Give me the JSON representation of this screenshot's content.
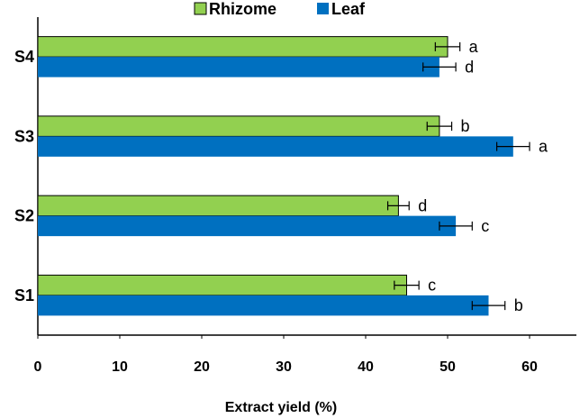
{
  "chart_data": {
    "type": "bar",
    "orientation": "horizontal",
    "title": "",
    "xlabel": "Extract yield (%)",
    "ylabel": "",
    "xlim": [
      0,
      65
    ],
    "x_ticks": [
      "0",
      "10",
      "20",
      "30",
      "40",
      "50",
      "60"
    ],
    "categories": [
      "S1",
      "S2",
      "S3",
      "S4"
    ],
    "series": [
      {
        "name": "Rhizome",
        "color": "#92d050",
        "values": [
          45,
          44,
          49,
          50
        ],
        "errors": [
          1.5,
          1.3,
          1.5,
          1.5
        ],
        "labels": [
          "c",
          "d",
          "b",
          "a"
        ]
      },
      {
        "name": "Leaf",
        "color": "#0070c0",
        "values": [
          55,
          51,
          58,
          49
        ],
        "errors": [
          2.0,
          2.0,
          2.0,
          2.0
        ],
        "labels": [
          "b",
          "c",
          "a",
          "d"
        ]
      }
    ],
    "legend_position": "top-center",
    "grid": false
  }
}
